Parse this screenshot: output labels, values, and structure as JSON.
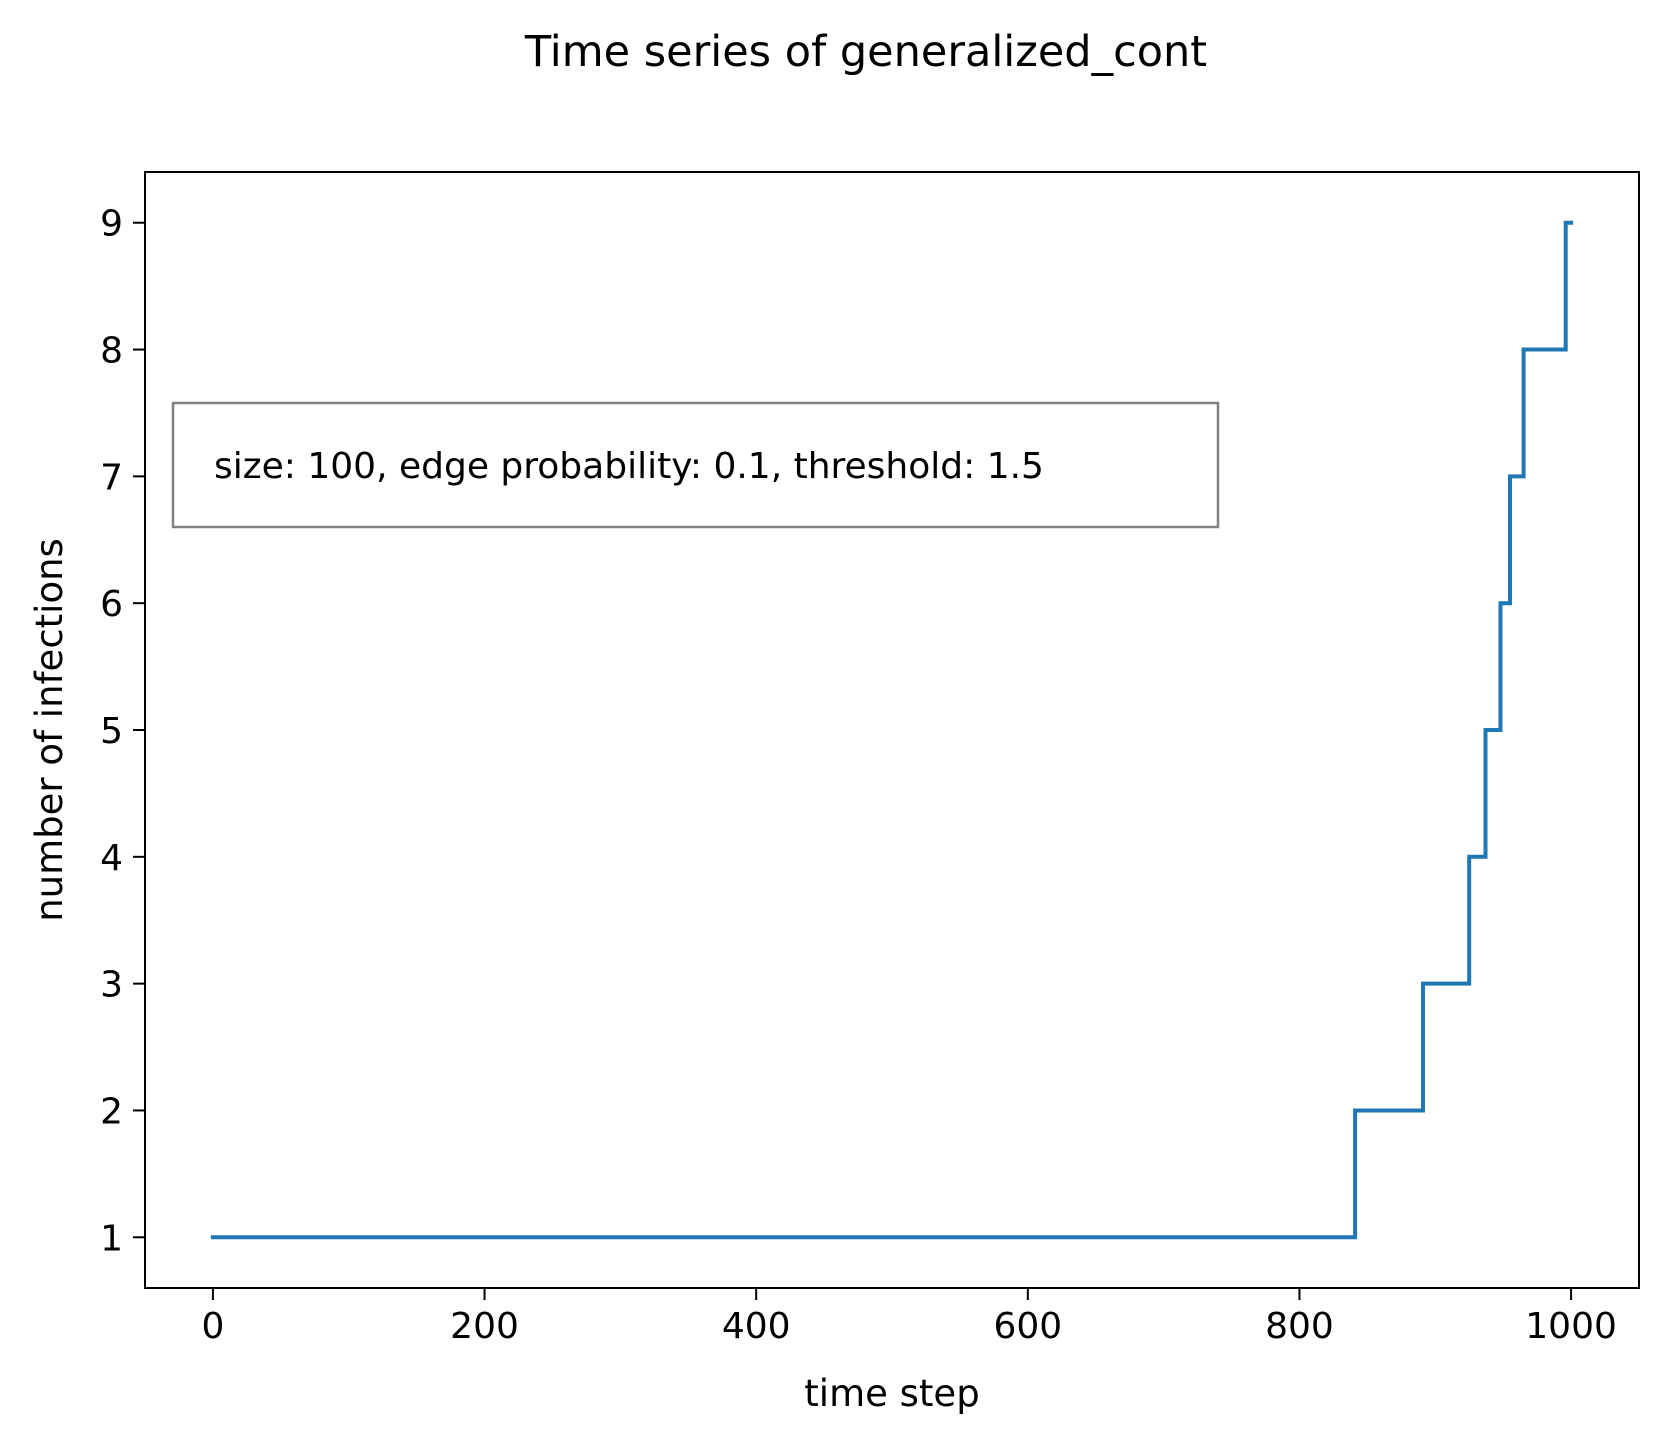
{
  "chart_data": {
    "type": "line",
    "title": "Time series of generalized_cont",
    "xlabel": "time step",
    "ylabel": "number of infections",
    "xlim": [
      -50,
      1050
    ],
    "ylim": [
      0.6,
      9.4
    ],
    "xticks": [
      0,
      200,
      400,
      600,
      800,
      1000
    ],
    "yticks": [
      1,
      2,
      3,
      4,
      5,
      6,
      7,
      8,
      9
    ],
    "grid": false,
    "annotation": "size: 100, edge probability: 0.1, threshold: 1.5",
    "series": [
      {
        "color": "#1f77b4",
        "step": true,
        "x": [
          0,
          841,
          891,
          925,
          937,
          948,
          955,
          965,
          996,
          1000
        ],
        "y": [
          1,
          2,
          3,
          4,
          5,
          6,
          7,
          8,
          9,
          9
        ]
      }
    ]
  }
}
